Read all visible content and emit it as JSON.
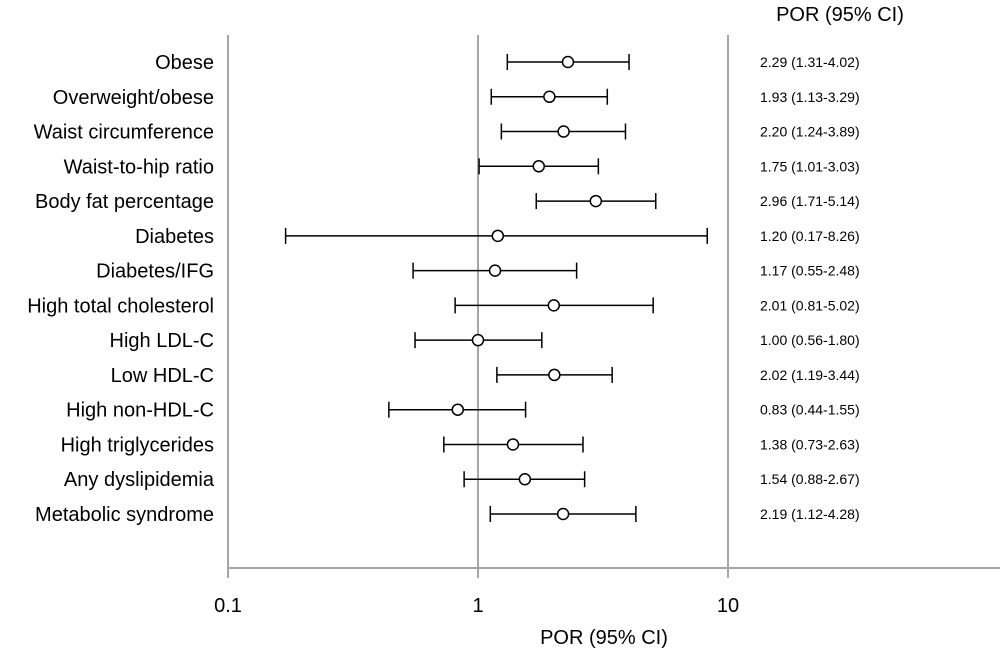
{
  "chart_data": {
    "type": "forest",
    "column_header": "POR (95% CI)",
    "xlabel": "POR (95% CI)",
    "xscale": "log",
    "xlim": [
      0.1,
      100
    ],
    "xticks": [
      "0.1",
      "1",
      "10"
    ],
    "reference_line": 1,
    "grid": true,
    "rows": [
      {
        "label": "Obese",
        "est": 2.29,
        "lo": 1.31,
        "hi": 4.02,
        "text": "2.29 (1.31-4.02)"
      },
      {
        "label": "Overweight/obese",
        "est": 1.93,
        "lo": 1.13,
        "hi": 3.29,
        "text": "1.93 (1.13-3.29)"
      },
      {
        "label": "Waist circumference",
        "est": 2.2,
        "lo": 1.24,
        "hi": 3.89,
        "text": "2.20 (1.24-3.89)"
      },
      {
        "label": "Waist-to-hip ratio",
        "est": 1.75,
        "lo": 1.01,
        "hi": 3.03,
        "text": "1.75 (1.01-3.03)"
      },
      {
        "label": "Body fat percentage",
        "est": 2.96,
        "lo": 1.71,
        "hi": 5.14,
        "text": "2.96 (1.71-5.14)"
      },
      {
        "label": "Diabetes",
        "est": 1.2,
        "lo": 0.17,
        "hi": 8.26,
        "text": "1.20 (0.17-8.26)"
      },
      {
        "label": "Diabetes/IFG",
        "est": 1.17,
        "lo": 0.55,
        "hi": 2.48,
        "text": "1.17 (0.55-2.48)"
      },
      {
        "label": "High total cholesterol",
        "est": 2.01,
        "lo": 0.81,
        "hi": 5.02,
        "text": "2.01 (0.81-5.02)"
      },
      {
        "label": "High LDL-C",
        "est": 1.0,
        "lo": 0.56,
        "hi": 1.8,
        "text": "1.00 (0.56-1.80)"
      },
      {
        "label": "Low HDL-C",
        "est": 2.02,
        "lo": 1.19,
        "hi": 3.44,
        "text": "2.02 (1.19-3.44)"
      },
      {
        "label": "High non-HDL-C",
        "est": 0.83,
        "lo": 0.44,
        "hi": 1.55,
        "text": "0.83 (0.44-1.55)"
      },
      {
        "label": "High triglycerides",
        "est": 1.38,
        "lo": 0.73,
        "hi": 2.63,
        "text": "1.38 (0.73-2.63)"
      },
      {
        "label": "Any dyslipidemia",
        "est": 1.54,
        "lo": 0.88,
        "hi": 2.67,
        "text": "1.54 (0.88-2.67)"
      },
      {
        "label": "Metabolic syndrome",
        "est": 2.19,
        "lo": 1.12,
        "hi": 4.28,
        "text": "2.19 (1.12-4.28)"
      }
    ],
    "colors": {
      "grid": "#a6a6a6",
      "marks": "#000000"
    }
  }
}
